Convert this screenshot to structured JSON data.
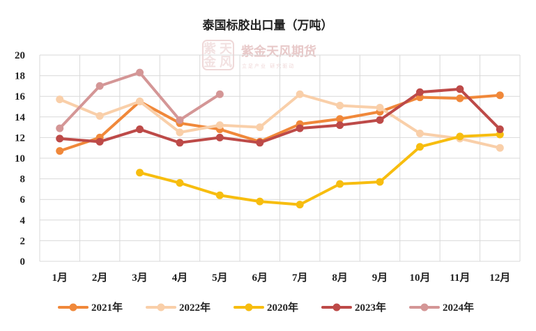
{
  "chart_data": {
    "type": "line",
    "title": "泰国标胶出口量（万吨）",
    "categories": [
      "1月",
      "2月",
      "3月",
      "4月",
      "5月",
      "6月",
      "7月",
      "8月",
      "9月",
      "10月",
      "11月",
      "12月"
    ],
    "ylim": [
      0,
      20
    ],
    "yticks": [
      0,
      2,
      4,
      6,
      8,
      10,
      12,
      14,
      16,
      18,
      20
    ],
    "grid": true,
    "legend_position": "bottom",
    "series": [
      {
        "name": "2021年",
        "color": "#f0883a",
        "values": [
          10.7,
          12.0,
          15.5,
          13.4,
          12.8,
          11.6,
          13.3,
          13.8,
          14.5,
          15.9,
          15.8,
          16.1
        ]
      },
      {
        "name": "2022年",
        "color": "#f9cfa9",
        "values": [
          15.7,
          14.1,
          15.5,
          12.5,
          13.2,
          13.0,
          16.2,
          15.1,
          14.9,
          12.4,
          11.9,
          11.0
        ]
      },
      {
        "name": "2020年",
        "color": "#f7bd0f",
        "values": [
          null,
          null,
          8.6,
          7.6,
          6.4,
          5.8,
          5.5,
          7.5,
          7.7,
          11.1,
          12.1,
          12.3
        ]
      },
      {
        "name": "2023年",
        "color": "#bd4a48",
        "values": [
          11.9,
          11.6,
          12.8,
          11.5,
          12.0,
          11.5,
          12.9,
          13.2,
          13.7,
          16.4,
          16.7,
          12.8
        ]
      },
      {
        "name": "2024年",
        "color": "#d49696",
        "values": [
          12.9,
          17.0,
          18.3,
          13.7,
          16.2,
          null,
          null,
          null,
          null,
          null,
          null,
          null
        ]
      }
    ]
  },
  "watermark": {
    "logo_text": "紫金天风期货",
    "tagline": "立足产业  研究驱动",
    "seal_chars": [
      "紫",
      "天",
      "金",
      "风"
    ]
  }
}
